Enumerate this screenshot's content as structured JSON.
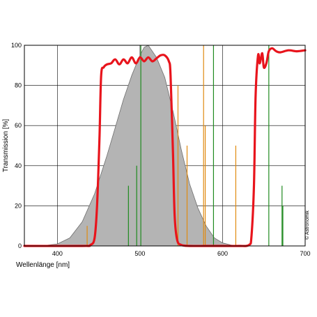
{
  "chart_data": {
    "type": "line",
    "xlabel": "Wellenlänge [nm]",
    "ylabel": "Transmission [%]",
    "xlim": [
      360,
      700
    ],
    "ylim": [
      0,
      100
    ],
    "x_ticks": [
      400,
      500,
      600,
      700
    ],
    "y_ticks": [
      0,
      20,
      40,
      60,
      80,
      100
    ],
    "x_ticks_labels": [
      "400",
      "500",
      "600",
      "700"
    ],
    "y_ticks_labels": [
      "0",
      "20",
      "40",
      "60",
      "80",
      "100"
    ],
    "grid": true,
    "copyright": "© Astronomik",
    "colors": {
      "filter": "#e8141c",
      "sensitivity_fill": "#b4b4b4",
      "sensitivity_stroke": "#6e6e6e",
      "lines_green": "#1f8a1f",
      "lines_orange": "#e08a10",
      "grid": "#000000"
    },
    "series": [
      {
        "kind": "area",
        "x": [
          360,
          380,
          400,
          415,
          430,
          445,
          460,
          470,
          480,
          490,
          500,
          505,
          510,
          520,
          530,
          540,
          550,
          560,
          570,
          580,
          590,
          600,
          610,
          620,
          640,
          700
        ],
        "y": [
          0,
          0,
          1,
          4,
          12,
          26,
          45,
          59,
          73,
          85,
          95,
          99,
          100,
          94,
          84,
          67,
          48,
          31,
          19,
          10,
          4,
          1.5,
          0.5,
          0,
          0,
          0
        ]
      },
      {
        "kind": "line",
        "x": [
          360,
          430,
          440,
          445,
          448,
          451,
          453,
          456,
          460,
          465,
          470,
          475,
          480,
          485,
          490,
          495,
          500,
          505,
          510,
          515,
          520,
          525,
          530,
          535,
          537,
          540,
          542,
          545,
          550,
          560,
          580,
          600,
          620,
          632,
          635,
          638,
          640,
          643,
          645,
          648,
          650,
          653,
          656,
          660,
          665,
          670,
          680,
          690,
          700
        ],
        "y": [
          0,
          0,
          0.5,
          4,
          20,
          55,
          85,
          89,
          90.5,
          91,
          93,
          90.5,
          93,
          91,
          94,
          91,
          94,
          92,
          94,
          92,
          93.5,
          95,
          95,
          92,
          85,
          45,
          15,
          3,
          0.5,
          0,
          0,
          0,
          0,
          0.5,
          5,
          30,
          75,
          95,
          91,
          96,
          89,
          91,
          97,
          98.5,
          97,
          96.5,
          97.5,
          97,
          97.5
        ]
      }
    ],
    "emission_lines": [
      {
        "x": 436,
        "y": 10,
        "color": "orange"
      },
      {
        "x": 486,
        "y": 30,
        "color": "green"
      },
      {
        "x": 496,
        "y": 40,
        "color": "green"
      },
      {
        "x": 501,
        "y": 100,
        "color": "green"
      },
      {
        "x": 546,
        "y": 80,
        "color": "orange"
      },
      {
        "x": 557,
        "y": 50,
        "color": "orange"
      },
      {
        "x": 577,
        "y": 100,
        "color": "orange"
      },
      {
        "x": 579,
        "y": 60,
        "color": "orange"
      },
      {
        "x": 589,
        "y": 100,
        "color": "green"
      },
      {
        "x": 616,
        "y": 50,
        "color": "orange"
      },
      {
        "x": 656,
        "y": 100,
        "color": "green"
      },
      {
        "x": 672,
        "y": 30,
        "color": "green"
      },
      {
        "x": 673,
        "y": 20,
        "color": "green"
      }
    ]
  }
}
